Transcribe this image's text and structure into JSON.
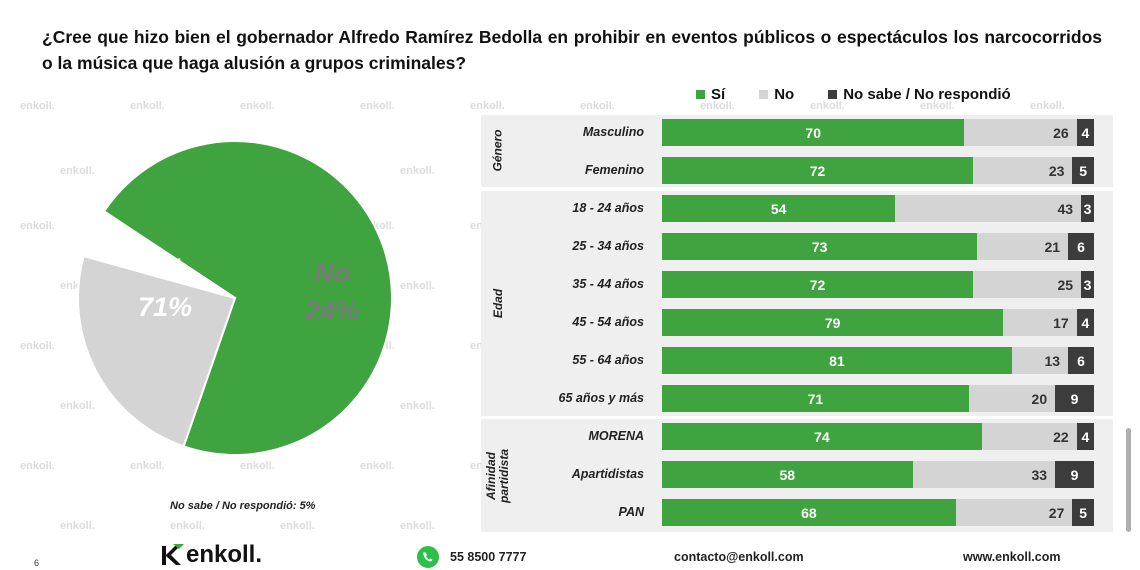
{
  "question": "¿Cree que hizo bien el gobernador Alfredo Ramírez Bedolla en prohibir en eventos públicos o espectáculos los narcocorridos o la música que haga alusión a grupos criminales?",
  "colors": {
    "si": "#3fa33f",
    "no": "#d4d4d4",
    "ns": "#3c3c3c",
    "group_bg": "#efefef"
  },
  "watermark": "enkoll.",
  "chart_data": [
    {
      "type": "pie",
      "slices": [
        {
          "label": "Sí",
          "value": 71,
          "display": "71%",
          "color": "#3fa33f"
        },
        {
          "label": "No",
          "value": 24,
          "display": "24%",
          "color": "#d4d4d4"
        },
        {
          "label": "No sabe / No respondió",
          "value": 5,
          "display": "5%",
          "color": "#ffffff"
        }
      ],
      "note": "No sabe / No respondió: 5%"
    },
    {
      "type": "bar",
      "orientation": "horizontal-stacked",
      "legend": [
        "Sí",
        "No",
        "No sabe / No respondió"
      ],
      "groups": [
        {
          "title": "Género",
          "rows": [
            {
              "label": "Masculino",
              "values": [
                70,
                26,
                4
              ]
            },
            {
              "label": "Femenino",
              "values": [
                72,
                23,
                5
              ]
            }
          ]
        },
        {
          "title": "Edad",
          "rows": [
            {
              "label": "18 - 24 años",
              "values": [
                54,
                43,
                3
              ]
            },
            {
              "label": "25 - 34 años",
              "values": [
                73,
                21,
                6
              ]
            },
            {
              "label": "35 - 44 años",
              "values": [
                72,
                25,
                3
              ]
            },
            {
              "label": "45 - 54 años",
              "values": [
                79,
                17,
                4
              ]
            },
            {
              "label": "55 - 64 años",
              "values": [
                81,
                13,
                6
              ]
            },
            {
              "label": "65  años y más",
              "values": [
                71,
                20,
                9
              ]
            }
          ]
        },
        {
          "title": "Afinidad partidista",
          "rows": [
            {
              "label": "MORENA",
              "values": [
                74,
                22,
                4
              ]
            },
            {
              "label": "Apartidistas",
              "values": [
                58,
                33,
                9
              ]
            },
            {
              "label": "PAN",
              "values": [
                68,
                27,
                5
              ]
            }
          ]
        }
      ]
    }
  ],
  "footer": {
    "logo": "enkoll.",
    "phone": "55 8500 7777",
    "email": "contacto@enkoll.com",
    "website": "www.enkoll.com",
    "page": "6"
  }
}
